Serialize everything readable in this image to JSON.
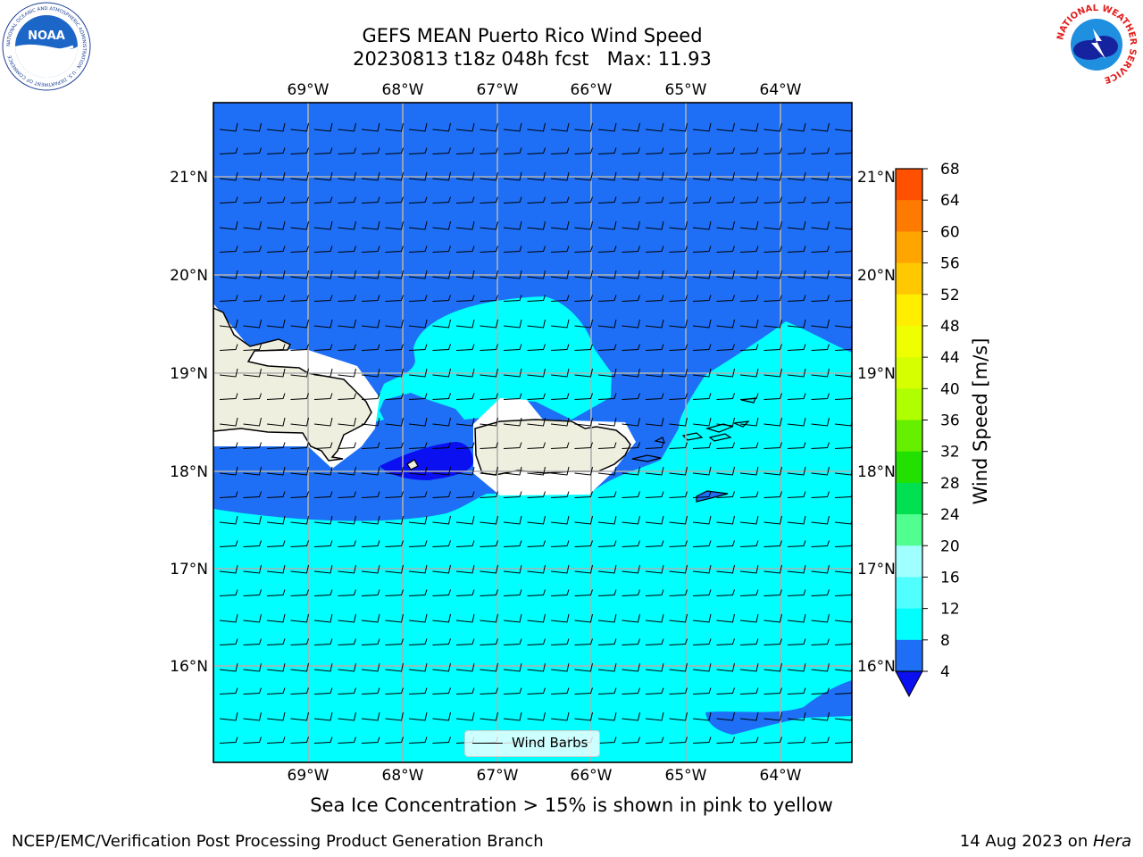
{
  "header": {
    "title_line1": "GEFS MEAN Puerto Rico Wind Speed",
    "title_line2": "20230813 t18z 048h fcst   Max: 11.93"
  },
  "logos": {
    "noaa_text": "NOAA",
    "noaa_ring_text": "NATIONAL OCEANIC AND ATMOSPHERIC ADMINISTRATION · U.S. DEPARTMENT OF COMMERCE",
    "nws_ring_text": "NATIONAL WEATHER SERVICE"
  },
  "map": {
    "lon_labels": [
      "69°W",
      "68°W",
      "67°W",
      "66°W",
      "65°W",
      "64°W"
    ],
    "lat_labels": [
      "21°N",
      "20°N",
      "19°N",
      "18°N",
      "17°N",
      "16°N"
    ],
    "legend_label": "Wind Barbs",
    "colors": {
      "speed_4_8": "#1e6ff6",
      "speed_8_12": "#00ffff",
      "speed_0_4": "#0a10f0",
      "land": "#efefdf",
      "no_data": "#ffffff"
    }
  },
  "colorbar": {
    "label": "Wind Speed [m/s]",
    "ticks": [
      "68",
      "64",
      "60",
      "56",
      "52",
      "48",
      "44",
      "40",
      "36",
      "32",
      "28",
      "24",
      "20",
      "16",
      "12",
      "8",
      "4"
    ],
    "colors": [
      "#ff0000",
      "#ff2500",
      "#ff5000",
      "#ff7a00",
      "#ffa500",
      "#ffc800",
      "#ffee00",
      "#f0ff00",
      "#d6ff00",
      "#b0ff00",
      "#66f000",
      "#22e000",
      "#00e050",
      "#50ff90",
      "#a0ffff",
      "#50ffff",
      "#00ffff",
      "#1e6ff6"
    ],
    "under_color": "#0a10f0"
  },
  "subtitle": "Sea Ice Concentration > 15% is shown in pink to yellow",
  "footer": {
    "left": "NCEP/EMC/Verification Post Processing Product Generation Branch",
    "right_prefix": "14 Aug 2023 on ",
    "right_host": "Hera"
  }
}
